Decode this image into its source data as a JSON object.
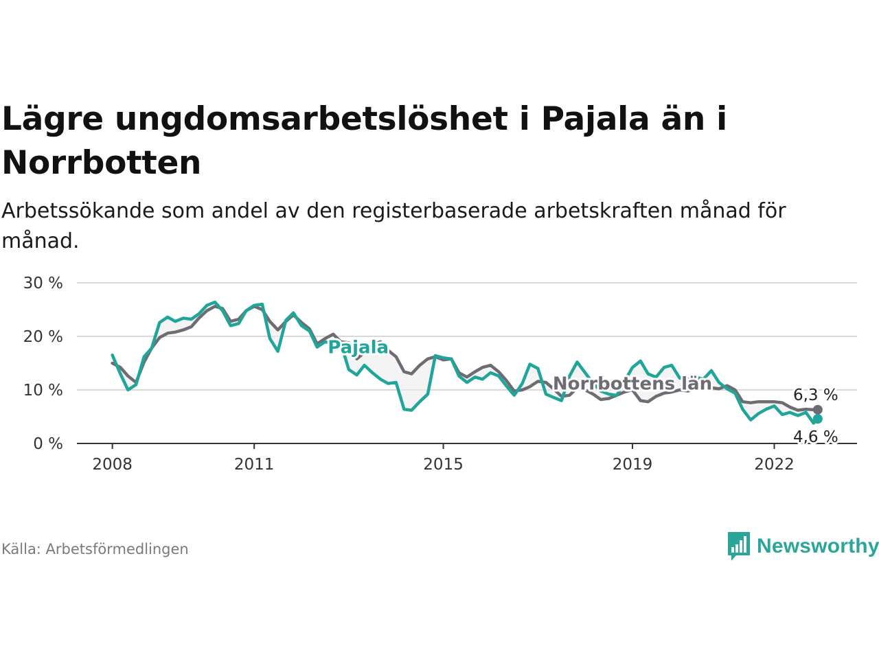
{
  "title": "Lägre ungdomsarbetslöshet i Pajala än i Norrbotten",
  "subtitle": "Arbetssökande som andel av den registerbaserade arbetskraften månad för månad.",
  "source": "Källa: Arbetsförmedlingen",
  "brand": {
    "name": "Newsworthy",
    "logo_icon": "bar-chart-speech-bubble-icon",
    "color": "#2aa59a"
  },
  "chart_data": {
    "type": "line",
    "title": "Lägre ungdomsarbetslöshet i Pajala än i Norrbotten",
    "xlabel": "",
    "ylabel": "",
    "xlim": [
      2007.25,
      2023.75
    ],
    "ylim": [
      0,
      30
    ],
    "grid": true,
    "x_ticks": [
      {
        "value": 2008,
        "label": "2008"
      },
      {
        "value": 2011,
        "label": "2011"
      },
      {
        "value": 2015,
        "label": "2015"
      },
      {
        "value": 2019,
        "label": "2019"
      },
      {
        "value": 2022,
        "label": "2022"
      }
    ],
    "y_ticks": [
      {
        "value": 0,
        "label": "0 %"
      },
      {
        "value": 10,
        "label": "10 %"
      },
      {
        "value": 20,
        "label": "20 %"
      },
      {
        "value": 30,
        "label": "30 %"
      }
    ],
    "series": [
      {
        "name": "Norrbottens län",
        "color": "#6e6c73",
        "x": [
          2008.0,
          2008.17,
          2008.33,
          2008.5,
          2008.67,
          2008.83,
          2009.0,
          2009.17,
          2009.33,
          2009.5,
          2009.67,
          2009.83,
          2010.0,
          2010.17,
          2010.33,
          2010.5,
          2010.67,
          2010.83,
          2011.0,
          2011.17,
          2011.33,
          2011.5,
          2011.67,
          2011.83,
          2012.0,
          2012.17,
          2012.33,
          2012.5,
          2012.67,
          2012.83,
          2013.0,
          2013.17,
          2013.33,
          2013.5,
          2013.67,
          2013.83,
          2014.0,
          2014.17,
          2014.33,
          2014.5,
          2014.67,
          2014.83,
          2015.0,
          2015.17,
          2015.33,
          2015.5,
          2015.67,
          2015.83,
          2016.0,
          2016.17,
          2016.33,
          2016.5,
          2016.67,
          2016.83,
          2017.0,
          2017.17,
          2017.33,
          2017.5,
          2017.67,
          2017.83,
          2018.0,
          2018.17,
          2018.33,
          2018.5,
          2018.67,
          2018.83,
          2019.0,
          2019.17,
          2019.33,
          2019.5,
          2019.67,
          2019.83,
          2020.0,
          2020.17,
          2020.33,
          2020.5,
          2020.67,
          2020.83,
          2021.0,
          2021.17,
          2021.33,
          2021.5,
          2021.67,
          2021.83,
          2022.0,
          2022.17,
          2022.33,
          2022.5,
          2022.67,
          2022.83,
          2022.92
        ],
        "y": [
          15.0,
          14.2,
          12.6,
          11.4,
          15.2,
          17.8,
          19.8,
          20.6,
          20.8,
          21.2,
          21.8,
          23.4,
          24.8,
          25.6,
          25.2,
          22.8,
          23.2,
          24.8,
          25.6,
          25.0,
          22.8,
          21.2,
          22.8,
          24.0,
          22.6,
          21.4,
          18.6,
          19.6,
          20.4,
          19.0,
          18.8,
          15.8,
          17.0,
          18.4,
          19.0,
          17.4,
          16.2,
          13.4,
          13.0,
          14.6,
          15.8,
          16.2,
          15.6,
          15.8,
          13.2,
          12.4,
          13.4,
          14.2,
          14.6,
          13.4,
          11.8,
          9.8,
          10.0,
          10.6,
          11.6,
          11.4,
          10.2,
          8.8,
          9.0,
          10.4,
          10.0,
          9.2,
          8.2,
          8.4,
          9.0,
          9.6,
          10.0,
          8.0,
          7.8,
          8.8,
          9.4,
          9.6,
          10.0,
          9.8,
          10.2,
          10.4,
          10.4,
          10.2,
          10.8,
          10.0,
          7.8,
          7.6,
          7.8,
          7.8,
          7.8,
          7.6,
          6.8,
          6.2,
          6.4,
          6.3,
          6.3
        ],
        "end_value": 6.3,
        "end_label": "6,3 %"
      },
      {
        "name": "Pajala",
        "color": "#1fa59a",
        "x": [
          2008.0,
          2008.17,
          2008.33,
          2008.5,
          2008.67,
          2008.83,
          2009.0,
          2009.17,
          2009.33,
          2009.5,
          2009.67,
          2009.83,
          2010.0,
          2010.17,
          2010.33,
          2010.5,
          2010.67,
          2010.83,
          2011.0,
          2011.17,
          2011.33,
          2011.5,
          2011.67,
          2011.83,
          2012.0,
          2012.17,
          2012.33,
          2012.5,
          2012.67,
          2012.83,
          2013.0,
          2013.17,
          2013.33,
          2013.5,
          2013.67,
          2013.83,
          2014.0,
          2014.17,
          2014.33,
          2014.5,
          2014.67,
          2014.83,
          2015.0,
          2015.17,
          2015.33,
          2015.5,
          2015.67,
          2015.83,
          2016.0,
          2016.17,
          2016.33,
          2016.5,
          2016.67,
          2016.83,
          2017.0,
          2017.17,
          2017.33,
          2017.5,
          2017.67,
          2017.83,
          2018.0,
          2018.17,
          2018.33,
          2018.5,
          2018.67,
          2018.83,
          2019.0,
          2019.17,
          2019.33,
          2019.5,
          2019.67,
          2019.83,
          2020.0,
          2020.17,
          2020.33,
          2020.5,
          2020.67,
          2020.83,
          2021.0,
          2021.17,
          2021.33,
          2021.5,
          2021.67,
          2021.83,
          2022.0,
          2022.17,
          2022.33,
          2022.5,
          2022.67,
          2022.83,
          2022.92
        ],
        "y": [
          16.5,
          13.0,
          10.0,
          11.0,
          16.2,
          17.8,
          22.6,
          23.6,
          22.8,
          23.4,
          23.2,
          24.2,
          25.8,
          26.4,
          24.8,
          22.0,
          22.4,
          24.8,
          25.8,
          26.0,
          19.6,
          17.2,
          23.0,
          24.4,
          22.0,
          21.0,
          18.0,
          19.0,
          18.6,
          18.8,
          13.8,
          12.8,
          14.6,
          13.2,
          12.0,
          11.2,
          11.4,
          6.4,
          6.2,
          7.8,
          9.2,
          16.4,
          16.0,
          15.8,
          12.6,
          11.4,
          12.4,
          12.0,
          13.2,
          12.6,
          10.8,
          9.0,
          11.2,
          14.8,
          14.0,
          9.2,
          8.6,
          8.0,
          12.6,
          15.2,
          13.2,
          11.2,
          9.8,
          9.2,
          9.0,
          11.6,
          14.2,
          15.4,
          13.0,
          12.4,
          14.2,
          14.6,
          12.2,
          12.0,
          12.4,
          12.0,
          13.6,
          11.4,
          10.2,
          9.4,
          6.4,
          4.4,
          5.6,
          6.4,
          7.0,
          5.4,
          5.8,
          5.2,
          5.8,
          3.8,
          4.6
        ],
        "end_value": 4.6,
        "end_label": "4,6 %"
      }
    ],
    "annotations": [
      {
        "text": "Pajala",
        "series": "Pajala",
        "x": 2013.2,
        "y": 18.0
      },
      {
        "text": "Norrbottens län",
        "series": "Norrbottens län",
        "x": 2019.0,
        "y": 11.2
      }
    ]
  }
}
